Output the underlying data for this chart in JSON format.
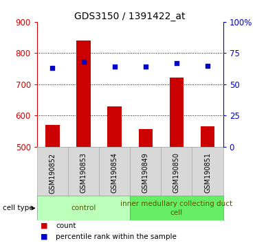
{
  "title": "GDS3150 / 1391422_at",
  "samples": [
    "GSM190852",
    "GSM190853",
    "GSM190854",
    "GSM190849",
    "GSM190850",
    "GSM190851"
  ],
  "counts": [
    570,
    840,
    630,
    558,
    722,
    565
  ],
  "percentiles": [
    63,
    68,
    64,
    64,
    67,
    65
  ],
  "ylim_left": [
    500,
    900
  ],
  "ylim_right": [
    0,
    100
  ],
  "yticks_left": [
    500,
    600,
    700,
    800,
    900
  ],
  "yticks_right": [
    0,
    25,
    50,
    75,
    100
  ],
  "bar_color": "#cc0000",
  "dot_color": "#0000cc",
  "bar_width": 0.45,
  "group_control_color": "#bbffbb",
  "group_inner_color": "#66ee66",
  "group_control_label": "control",
  "group_inner_label": "inner medullary collecting duct\ncell",
  "legend_count_label": "count",
  "legend_percentile_label": "percentile rank within the sample",
  "cell_type_label": "cell type",
  "sample_bg_color": "#d8d8d8",
  "plot_bg": "#ffffff",
  "left_tick_color": "#cc0000",
  "right_tick_color": "#0000cc",
  "title_fontsize": 10,
  "tick_fontsize": 8.5,
  "sample_fontsize": 7,
  "group_fontsize": 7.5,
  "legend_fontsize": 7.5
}
